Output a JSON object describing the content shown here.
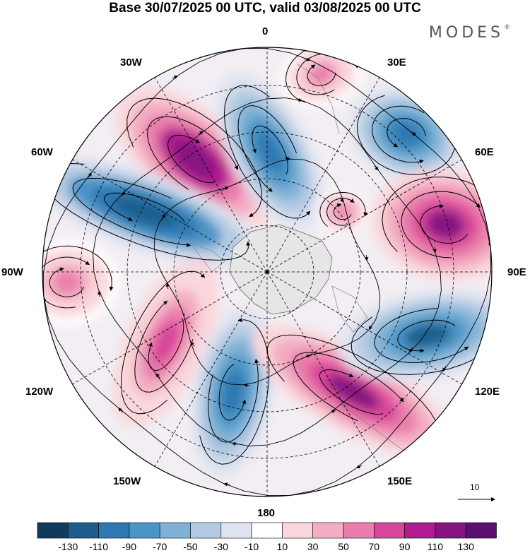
{
  "title": "Base 30/07/2025 00 UTC, valid 03/08/2025 00 UTC",
  "brand": "MODES",
  "brand_mark": "®",
  "projection": "south-polar-stereographic",
  "longitude_labels": {
    "lon_0": "0",
    "lon_30e": "30E",
    "lon_60e": "60E",
    "lon_90e": "90E",
    "lon_120e": "120E",
    "lon_150e": "150E",
    "lon_180": "180",
    "lon_150w": "150W",
    "lon_120w": "120W",
    "lon_90w": "90W",
    "lon_60w": "60W",
    "lon_30w": "30W"
  },
  "reference_vector": {
    "label": "10"
  },
  "colorbar": {
    "colors": [
      "#0f3b5c",
      "#1d5e8d",
      "#2d78b2",
      "#4b95c6",
      "#7fb2d6",
      "#b4cbe3",
      "#dfe2ef",
      "#ffffff",
      "#f9d7dc",
      "#f3aec3",
      "#ea7dab",
      "#d8469a",
      "#b21a8f",
      "#861381",
      "#5b0f70"
    ],
    "ticks": [
      "-130",
      "-110",
      "-90",
      "-70",
      "-50",
      "-30",
      "-10",
      "10",
      "30",
      "50",
      "70",
      "90",
      "110",
      "130"
    ]
  },
  "anomaly_centers": [
    {
      "name": "pos-30w-60w",
      "value": 125
    },
    {
      "name": "neg-0-30w",
      "value": -100
    },
    {
      "name": "neg-30e",
      "value": -95
    },
    {
      "name": "pos-60e",
      "value": 115
    },
    {
      "name": "neg-60w-90w",
      "value": -130
    },
    {
      "name": "pos-90w",
      "value": 50
    },
    {
      "name": "pos-120w",
      "value": 75
    },
    {
      "name": "neg-150w-180",
      "value": -110
    },
    {
      "name": "pos-150e",
      "value": 115
    },
    {
      "name": "neg-120e",
      "value": -120
    },
    {
      "name": "pos-30e-small",
      "value": 60
    },
    {
      "name": "pos-0-30e",
      "value": 50
    }
  ]
}
